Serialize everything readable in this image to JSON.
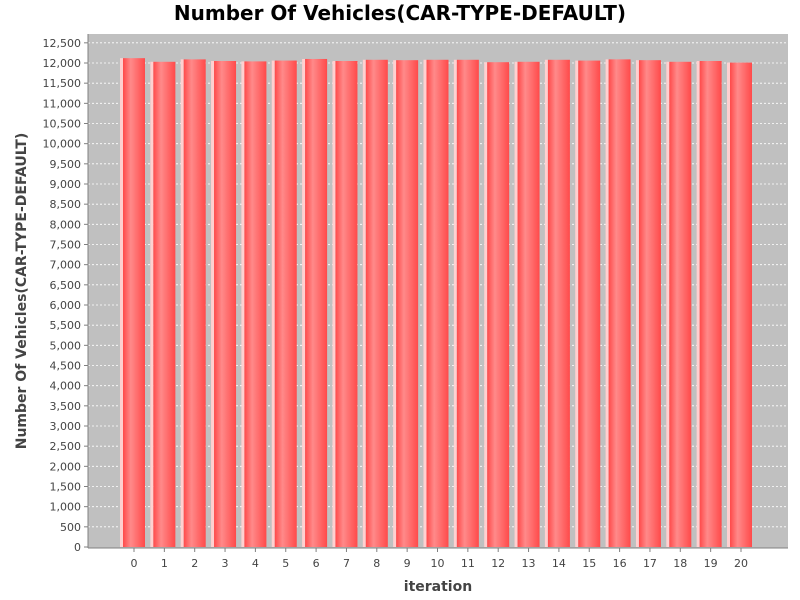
{
  "chart_data": {
    "type": "bar",
    "title": "Number Of Vehicles(CAR-TYPE-DEFAULT)",
    "xlabel": "iteration",
    "ylabel": "Number Of Vehicles(CAR-TYPE-DEFAULT)",
    "categories": [
      "0",
      "1",
      "2",
      "3",
      "4",
      "5",
      "6",
      "7",
      "8",
      "9",
      "10",
      "11",
      "12",
      "13",
      "14",
      "15",
      "16",
      "17",
      "18",
      "19",
      "20"
    ],
    "values": [
      12120,
      12030,
      12090,
      12050,
      12040,
      12060,
      12100,
      12050,
      12080,
      12070,
      12080,
      12080,
      12020,
      12030,
      12080,
      12060,
      12090,
      12070,
      12030,
      12050,
      12010
    ],
    "ylim": [
      0,
      12750
    ],
    "yticks": [
      0,
      500,
      1000,
      1500,
      2000,
      2500,
      3000,
      3500,
      4000,
      4500,
      5000,
      5500,
      6000,
      6500,
      7000,
      7500,
      8000,
      8500,
      9000,
      9500,
      10000,
      10500,
      11000,
      11500,
      12000,
      12500
    ],
    "ytick_labels": [
      "0",
      "500",
      "1,000",
      "1,500",
      "2,000",
      "2,500",
      "3,000",
      "3,500",
      "4,000",
      "4,500",
      "5,000",
      "5,500",
      "6,000",
      "6,500",
      "7,000",
      "7,500",
      "8,000",
      "8,500",
      "9,000",
      "9,500",
      "10,000",
      "10,500",
      "11,000",
      "11,500",
      "12,000",
      "12,500"
    ],
    "grid": true,
    "colors": {
      "bar": "#ff5555",
      "bar_highlight": "#ff8a8a",
      "plot_background": "#c0c0c0",
      "gridline": "#ffffff"
    }
  }
}
